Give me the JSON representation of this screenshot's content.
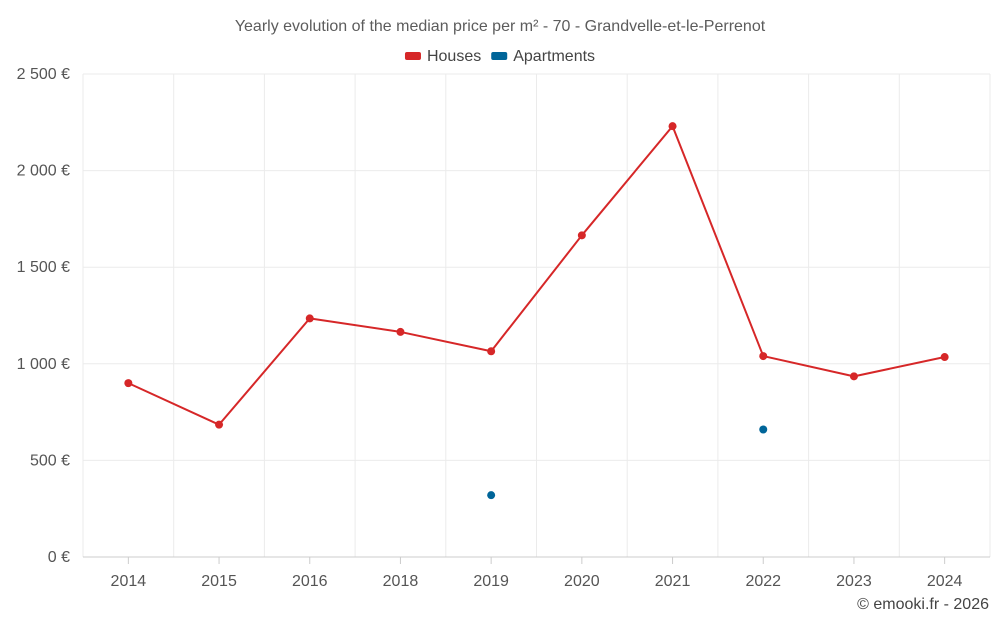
{
  "chart_data": {
    "type": "line",
    "title": "Yearly evolution of the median price per m² - 70 - Grandvelle-et-le-Perrenot",
    "categories": [
      "2014",
      "2015",
      "2016",
      "2018",
      "2019",
      "2020",
      "2021",
      "2022",
      "2023",
      "2024"
    ],
    "ylim": [
      0,
      2500
    ],
    "yticks": [
      0,
      500,
      1000,
      1500,
      2000,
      2500
    ],
    "ytick_labels": [
      "0 €",
      "500 €",
      "1 000 €",
      "1 500 €",
      "2 000 €",
      "2 500 €"
    ],
    "xlabel": "",
    "ylabel": "",
    "grid": true,
    "legend_position": "top-center",
    "series": [
      {
        "name": "Houses",
        "color": "#d62728",
        "values": [
          900,
          685,
          1235,
          1165,
          1065,
          1665,
          2230,
          1040,
          935,
          1035
        ]
      },
      {
        "name": "Apartments",
        "color": "#006599",
        "values": [
          null,
          null,
          null,
          null,
          320,
          null,
          null,
          660,
          null,
          null
        ]
      }
    ]
  },
  "credit": "© emooki.fr - 2026"
}
